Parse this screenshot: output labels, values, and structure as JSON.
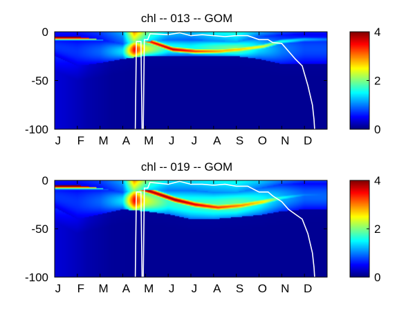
{
  "chart_data": [
    {
      "type": "heatmap",
      "title": "chl -- 013 -- GOM",
      "variable": "chl",
      "xlabel": "",
      "ylabel": "",
      "x_ticks": [
        "J",
        "F",
        "M",
        "A",
        "M",
        "J",
        "J",
        "A",
        "S",
        "O",
        "N",
        "D"
      ],
      "y_ticks": [
        0,
        -50,
        -100
      ],
      "ylim": [
        -100,
        0
      ],
      "colorbar": {
        "range": [
          0,
          4
        ],
        "ticks": [
          0,
          2,
          4
        ],
        "colormap": "jet"
      },
      "layer_top_depth": [
        [
          0,
          -5
        ],
        [
          1,
          -5
        ],
        [
          2,
          -8
        ],
        [
          3,
          -12
        ],
        [
          3.5,
          -10
        ],
        [
          4,
          -10
        ],
        [
          5,
          -8
        ],
        [
          6,
          -8
        ],
        [
          7,
          -9
        ],
        [
          8,
          -10
        ],
        [
          9,
          -5
        ],
        [
          10,
          -3
        ],
        [
          11,
          -2
        ],
        [
          11.9,
          -2
        ]
      ],
      "layer_bottom_depth": [
        [
          0,
          -25
        ],
        [
          1,
          -35
        ],
        [
          2,
          -32
        ],
        [
          3,
          -28
        ],
        [
          4,
          -25
        ],
        [
          5,
          -25
        ],
        [
          6,
          -25
        ],
        [
          7,
          -25
        ],
        [
          8,
          -25
        ],
        [
          9,
          -28
        ],
        [
          10,
          -33
        ],
        [
          11,
          -33
        ],
        [
          11.9,
          -33
        ]
      ],
      "deep_chl": [
        [
          0,
          0.6
        ],
        [
          0.7,
          0.45
        ],
        [
          1.5,
          0.25
        ],
        [
          2.5,
          0.1
        ],
        [
          4,
          0.05
        ],
        [
          11.9,
          0.05
        ]
      ],
      "subsurface_max": {
        "points": [
          [
            3.4,
            -5,
            4.5
          ],
          [
            4.2,
            -10,
            3.5
          ],
          [
            5.2,
            -18,
            3.8
          ],
          [
            6.2,
            -20,
            3.3
          ],
          [
            7.2,
            -20,
            2.9
          ],
          [
            8.2,
            -18,
            2.7
          ],
          [
            9.2,
            -15,
            2.4
          ],
          [
            10,
            -10,
            1.6
          ],
          [
            11,
            -8,
            1.2
          ],
          [
            11.9,
            -8,
            1.0
          ]
        ],
        "sigma": 6
      },
      "surface_layer": [
        [
          0,
          0.7
        ],
        [
          1,
          0.7
        ],
        [
          2,
          0.9
        ],
        [
          3,
          1.4
        ],
        [
          3.5,
          3.5
        ],
        [
          4,
          2.4
        ],
        [
          5,
          1.6
        ],
        [
          6,
          1.5
        ],
        [
          7,
          1.8
        ],
        [
          8,
          2.0
        ],
        [
          9,
          1.4
        ],
        [
          10,
          1.0
        ],
        [
          11,
          0.8
        ],
        [
          11.9,
          0.8
        ]
      ],
      "mixed_layer_depth": [
        [
          3.55,
          -100
        ],
        [
          3.6,
          -10
        ],
        [
          3.8,
          -10
        ],
        [
          3.85,
          -100
        ],
        [
          3.9,
          -100
        ],
        [
          3.95,
          -8
        ],
        [
          4.1,
          -8
        ],
        [
          4.2,
          -2
        ],
        [
          5,
          -3
        ],
        [
          5.5,
          -1
        ],
        [
          6,
          -4
        ],
        [
          6.5,
          -3
        ],
        [
          7,
          -4
        ],
        [
          7.5,
          -5
        ],
        [
          8,
          -4
        ],
        [
          8.5,
          -4
        ],
        [
          9,
          -8
        ],
        [
          9.4,
          -8
        ],
        [
          9.6,
          -11
        ],
        [
          10,
          -12
        ],
        [
          10.3,
          -20
        ],
        [
          10.6,
          -28
        ],
        [
          10.9,
          -35
        ],
        [
          11.15,
          -55
        ],
        [
          11.35,
          -75
        ],
        [
          11.42,
          -90
        ],
        [
          11.45,
          -100
        ]
      ]
    },
    {
      "type": "heatmap",
      "title": "chl -- 019 -- GOM",
      "variable": "chl",
      "xlabel": "",
      "ylabel": "",
      "x_ticks": [
        "J",
        "F",
        "M",
        "A",
        "M",
        "J",
        "J",
        "A",
        "S",
        "O",
        "N",
        "D"
      ],
      "y_ticks": [
        0,
        -50,
        -100
      ],
      "ylim": [
        -100,
        0
      ],
      "colorbar": {
        "range": [
          0,
          4
        ],
        "ticks": [
          0,
          2,
          4
        ],
        "colormap": "jet"
      },
      "layer_top_depth": [
        [
          0,
          -5
        ],
        [
          1,
          -5
        ],
        [
          2,
          -8
        ],
        [
          3,
          -12
        ],
        [
          3.5,
          -10
        ],
        [
          4,
          -10
        ],
        [
          5,
          -10
        ],
        [
          6,
          -10
        ],
        [
          7,
          -12
        ],
        [
          8,
          -12
        ],
        [
          9,
          -8
        ],
        [
          10,
          -4
        ],
        [
          11,
          -3
        ],
        [
          11.9,
          -3
        ]
      ],
      "layer_bottom_depth": [
        [
          0,
          -28
        ],
        [
          1,
          -40
        ],
        [
          2,
          -35
        ],
        [
          3,
          -30
        ],
        [
          4,
          -32
        ],
        [
          5,
          -35
        ],
        [
          6,
          -40
        ],
        [
          7,
          -40
        ],
        [
          8,
          -38
        ],
        [
          9,
          -36
        ],
        [
          10,
          -32
        ],
        [
          11,
          -30
        ],
        [
          11.9,
          -30
        ]
      ],
      "deep_chl": [
        [
          0,
          0.6
        ],
        [
          0.7,
          0.45
        ],
        [
          1.5,
          0.25
        ],
        [
          2.5,
          0.1
        ],
        [
          4,
          0.05
        ],
        [
          11.9,
          0.05
        ]
      ],
      "subsurface_max": {
        "points": [
          [
            3.4,
            -5,
            4.5
          ],
          [
            4.3,
            -12,
            3.8
          ],
          [
            5.3,
            -20,
            3.9
          ],
          [
            6.2,
            -25,
            3.6
          ],
          [
            7.2,
            -28,
            3.3
          ],
          [
            8.2,
            -26,
            3.0
          ],
          [
            9.2,
            -22,
            2.6
          ],
          [
            10,
            -18,
            1.6
          ],
          [
            11,
            -15,
            1.0
          ],
          [
            11.9,
            -15,
            0.9
          ]
        ],
        "sigma": 7
      },
      "surface_layer": [
        [
          0,
          0.7
        ],
        [
          1,
          0.7
        ],
        [
          2,
          0.9
        ],
        [
          3,
          1.4
        ],
        [
          3.5,
          3.5
        ],
        [
          4,
          2.4
        ],
        [
          5,
          1.7
        ],
        [
          6,
          1.7
        ],
        [
          7,
          1.8
        ],
        [
          8,
          1.9
        ],
        [
          9,
          1.6
        ],
        [
          10,
          1.2
        ],
        [
          11,
          0.9
        ],
        [
          11.9,
          0.9
        ]
      ],
      "mixed_layer_depth": [
        [
          3.55,
          -100
        ],
        [
          3.6,
          -12
        ],
        [
          3.8,
          -12
        ],
        [
          3.85,
          -100
        ],
        [
          3.9,
          -100
        ],
        [
          3.95,
          -8
        ],
        [
          4.1,
          -8
        ],
        [
          4.2,
          -2
        ],
        [
          5,
          -4
        ],
        [
          5.5,
          -1
        ],
        [
          6,
          -4
        ],
        [
          6.5,
          -4
        ],
        [
          7,
          -5
        ],
        [
          7.5,
          -4
        ],
        [
          8,
          -6
        ],
        [
          8.5,
          -6
        ],
        [
          9,
          -12
        ],
        [
          9.4,
          -12
        ],
        [
          9.6,
          -16
        ],
        [
          10,
          -22
        ],
        [
          10.3,
          -30
        ],
        [
          10.6,
          -35
        ],
        [
          10.9,
          -40
        ],
        [
          11.15,
          -55
        ],
        [
          11.35,
          -75
        ],
        [
          11.42,
          -90
        ],
        [
          11.45,
          -100
        ]
      ]
    }
  ]
}
